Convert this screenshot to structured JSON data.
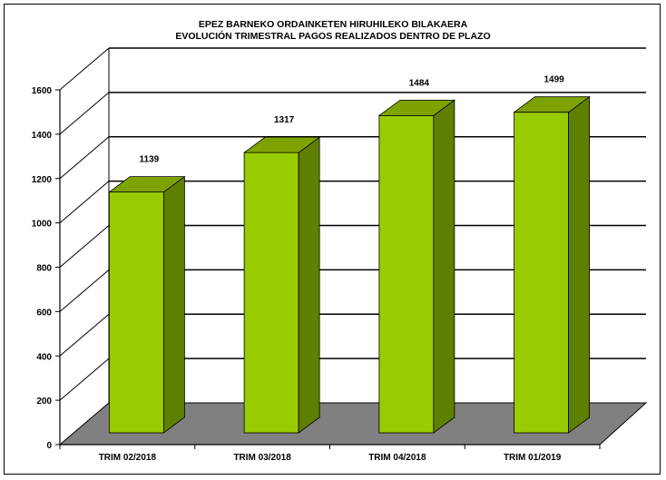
{
  "chart_data": {
    "type": "bar",
    "title": "EPEZ BARNEKO ORDAINKETEN HIRUHILEKO BILAKAERA",
    "subtitle": "EVOLUCIÓN TRIMESTRAL PAGOS REALIZADOS DENTRO DE PLAZO",
    "categories": [
      "TRIM 02/2018",
      "TRIM 03/2018",
      "TRIM 04/2018",
      "TRIM 01/2019"
    ],
    "values": [
      1139,
      1317,
      1484,
      1499
    ],
    "data_labels": [
      "1139",
      "1317",
      "1484",
      "1499"
    ],
    "ylim": [
      0,
      1600
    ],
    "yticks": [
      0,
      200,
      400,
      600,
      800,
      1000,
      1200,
      1400,
      1600
    ],
    "grid": true,
    "three_d": true,
    "colors": {
      "bar_front": "#99cc00",
      "bar_side": "#5f7f00",
      "bar_top": "#7ea300",
      "floor": "#808080"
    }
  }
}
